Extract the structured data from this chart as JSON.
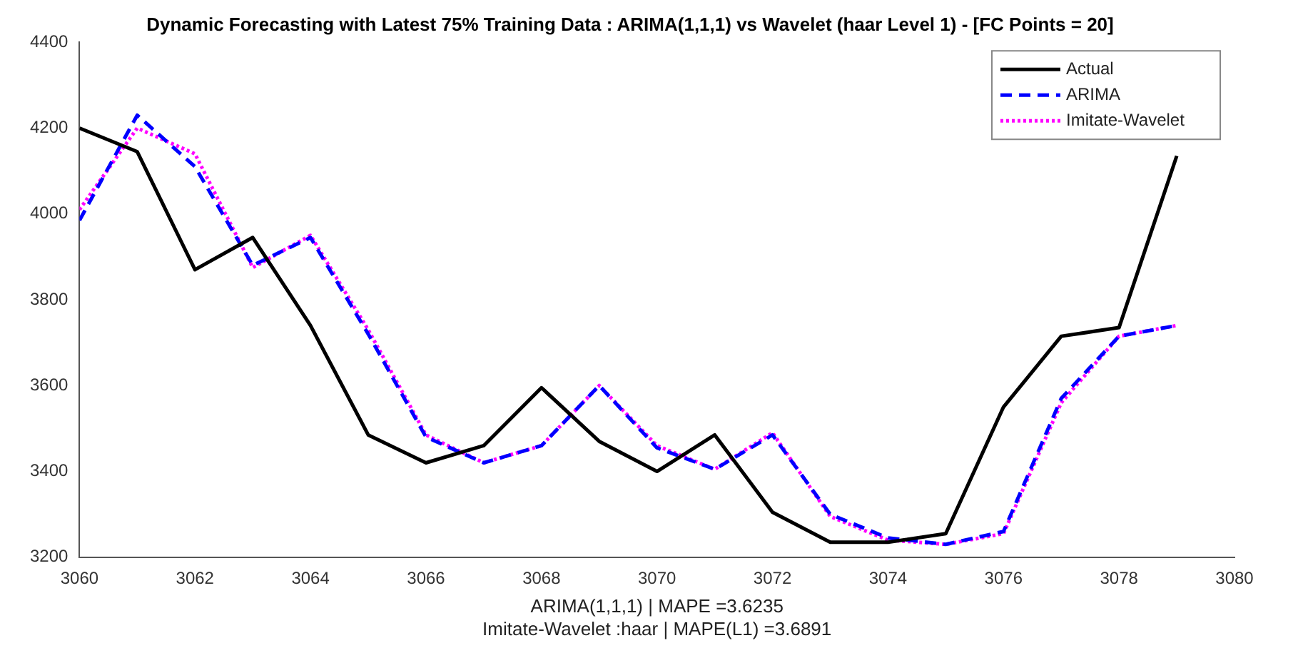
{
  "chart_data": {
    "type": "line",
    "title": "Dynamic Forecasting with Latest 75% Training Data : ARIMA(1,1,1) vs Wavelet (haar Level 1) - [FC Points = 20]",
    "xlabel": "ARIMA(1,1,1) | MAPE =3.6235\nImitate-Wavelet :haar | MAPE(L1) =3.6891",
    "x": [
      3060,
      3061,
      3062,
      3063,
      3064,
      3065,
      3066,
      3067,
      3068,
      3069,
      3070,
      3071,
      3072,
      3073,
      3074,
      3075,
      3076,
      3077,
      3078,
      3079
    ],
    "series": [
      {
        "name": "Actual",
        "color": "#000000",
        "line_style": "solid",
        "values": [
          4200,
          4145,
          3870,
          3945,
          3740,
          3485,
          3420,
          3460,
          3595,
          3470,
          3400,
          3485,
          3305,
          3235,
          3235,
          3255,
          3550,
          3715,
          3735,
          4135
        ]
      },
      {
        "name": "ARIMA",
        "color": "#0000ff",
        "line_style": "dashed",
        "values": [
          3985,
          4230,
          4110,
          3880,
          3945,
          3720,
          3480,
          3420,
          3460,
          3600,
          3455,
          3405,
          3485,
          3300,
          3245,
          3230,
          3260,
          3570,
          3715,
          3740
        ]
      },
      {
        "name": "Imitate-Wavelet",
        "color": "#ff00ff",
        "line_style": "dotted",
        "values": [
          4010,
          4200,
          4140,
          3875,
          3950,
          3730,
          3485,
          3420,
          3460,
          3600,
          3460,
          3405,
          3490,
          3295,
          3240,
          3230,
          3255,
          3560,
          3715,
          3740
        ]
      }
    ],
    "xlim": [
      3060,
      3080
    ],
    "xticks": [
      3060,
      3062,
      3064,
      3066,
      3068,
      3070,
      3072,
      3074,
      3076,
      3078,
      3080
    ],
    "ylim": [
      3200,
      4400
    ],
    "yticks": [
      3200,
      3400,
      3600,
      3800,
      4000,
      4200,
      4400
    ],
    "grid": false,
    "legend": "top right",
    "marker": "none"
  }
}
